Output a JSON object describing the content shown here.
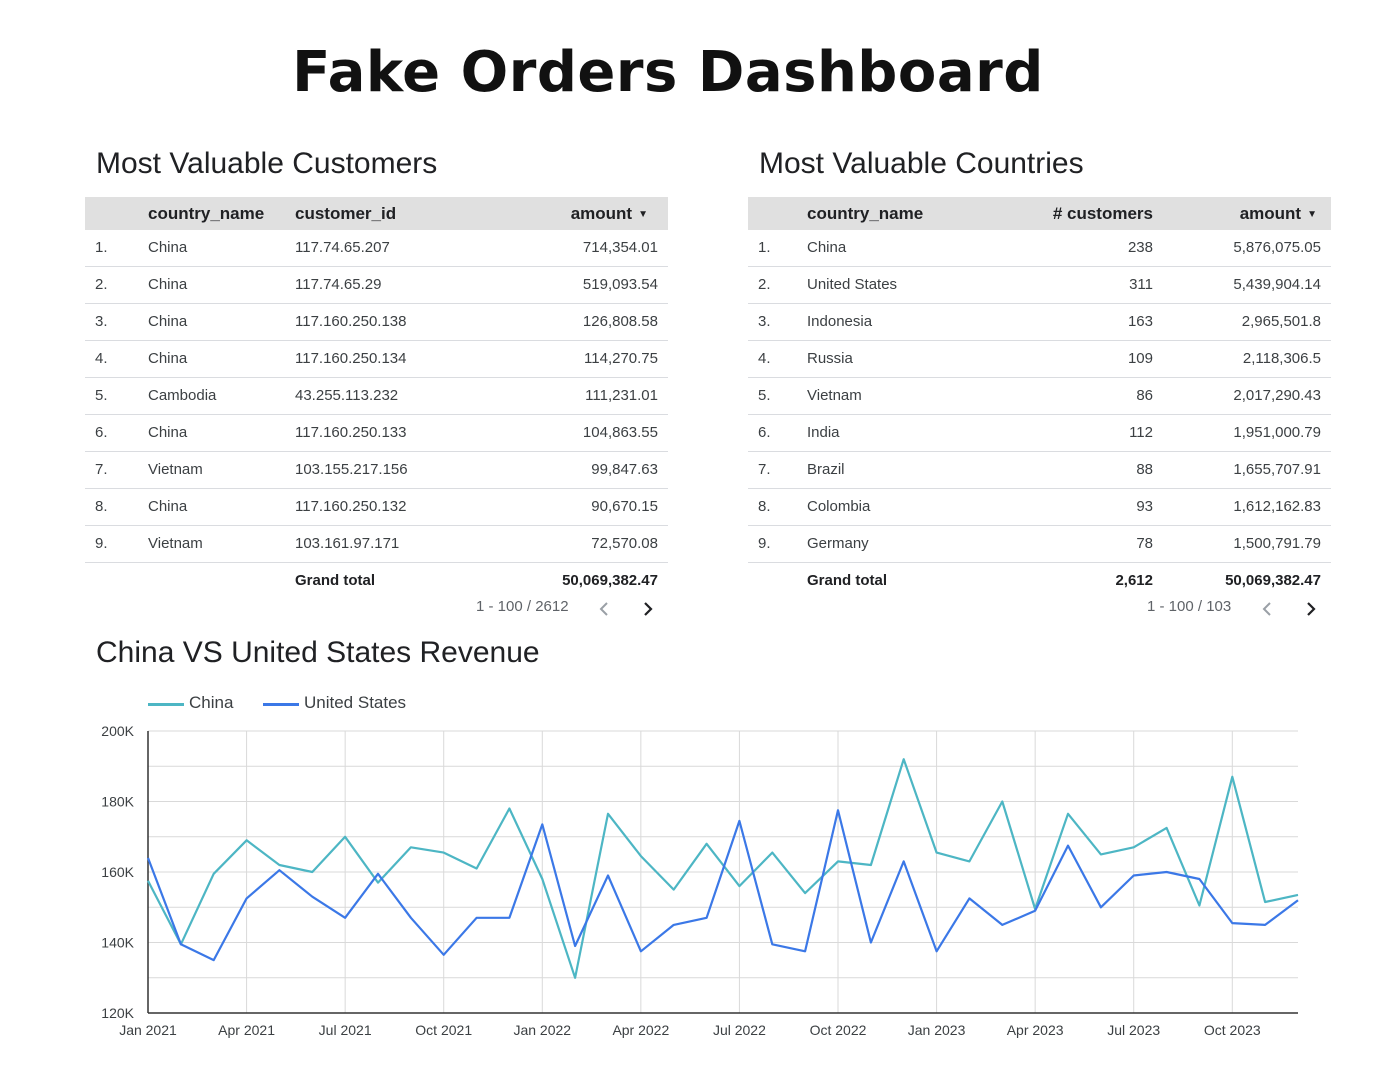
{
  "dashboard": {
    "title": "Fake Orders Dashboard"
  },
  "customers": {
    "title": "Most Valuable Customers",
    "headers": {
      "country": "country_name",
      "customer": "customer_id",
      "amount": "amount"
    },
    "rows": [
      {
        "rank": "1.",
        "country": "China",
        "customer": "117.74.65.207",
        "amount": "714,354.01"
      },
      {
        "rank": "2.",
        "country": "China",
        "customer": "117.74.65.29",
        "amount": "519,093.54"
      },
      {
        "rank": "3.",
        "country": "China",
        "customer": "117.160.250.138",
        "amount": "126,808.58"
      },
      {
        "rank": "4.",
        "country": "China",
        "customer": "117.160.250.134",
        "amount": "114,270.75"
      },
      {
        "rank": "5.",
        "country": "Cambodia",
        "customer": "43.255.113.232",
        "amount": "111,231.01"
      },
      {
        "rank": "6.",
        "country": "China",
        "customer": "117.160.250.133",
        "amount": "104,863.55"
      },
      {
        "rank": "7.",
        "country": "Vietnam",
        "customer": "103.155.217.156",
        "amount": "99,847.63"
      },
      {
        "rank": "8.",
        "country": "China",
        "customer": "117.160.250.132",
        "amount": "90,670.15"
      },
      {
        "rank": "9.",
        "country": "Vietnam",
        "customer": "103.161.97.171",
        "amount": "72,570.08"
      }
    ],
    "total": {
      "label": "Grand total",
      "amount": "50,069,382.47"
    },
    "pager": {
      "text": "1 - 100 / 2612"
    }
  },
  "countries": {
    "title": "Most Valuable Countries",
    "headers": {
      "country": "country_name",
      "customers": "# customers",
      "amount": "amount"
    },
    "rows": [
      {
        "rank": "1.",
        "country": "China",
        "customers": "238",
        "amount": "5,876,075.05"
      },
      {
        "rank": "2.",
        "country": "United States",
        "customers": "311",
        "amount": "5,439,904.14"
      },
      {
        "rank": "3.",
        "country": "Indonesia",
        "customers": "163",
        "amount": "2,965,501.8"
      },
      {
        "rank": "4.",
        "country": "Russia",
        "customers": "109",
        "amount": "2,118,306.5"
      },
      {
        "rank": "5.",
        "country": "Vietnam",
        "customers": "86",
        "amount": "2,017,290.43"
      },
      {
        "rank": "6.",
        "country": "India",
        "customers": "112",
        "amount": "1,951,000.79"
      },
      {
        "rank": "7.",
        "country": "Brazil",
        "customers": "88",
        "amount": "1,655,707.91"
      },
      {
        "rank": "8.",
        "country": "Colombia",
        "customers": "93",
        "amount": "1,612,162.83"
      },
      {
        "rank": "9.",
        "country": "Germany",
        "customers": "78",
        "amount": "1,500,791.79"
      }
    ],
    "total": {
      "label": "Grand total",
      "customers": "2,612",
      "amount": "50,069,382.47"
    },
    "pager": {
      "text": "1 - 100 / 103"
    }
  },
  "icons": {
    "sort": "sort-desc-icon",
    "prev": "chevron-left-icon",
    "next": "chevron-right-icon"
  },
  "colors": {
    "china": "#4db6c4",
    "us": "#3b78e7",
    "header_bg": "#e0e0e0",
    "grid": "#d9d9d9"
  },
  "chart_data": {
    "type": "line",
    "title": "China VS United States Revenue",
    "x": [
      "Jan 2021",
      "Feb 2021",
      "Mar 2021",
      "Apr 2021",
      "May 2021",
      "Jun 2021",
      "Jul 2021",
      "Aug 2021",
      "Sep 2021",
      "Oct 2021",
      "Nov 2021",
      "Dec 2021",
      "Jan 2022",
      "Feb 2022",
      "Mar 2022",
      "Apr 2022",
      "May 2022",
      "Jun 2022",
      "Jul 2022",
      "Aug 2022",
      "Sep 2022",
      "Oct 2022",
      "Nov 2022",
      "Dec 2022",
      "Jan 2023",
      "Feb 2023",
      "Mar 2023",
      "Apr 2023",
      "May 2023",
      "Jun 2023",
      "Jul 2023",
      "Aug 2023",
      "Sep 2023",
      "Oct 2023",
      "Nov 2023",
      "Dec 2023"
    ],
    "x_ticks": [
      "Jan 2021",
      "Apr 2021",
      "Jul 2021",
      "Oct 2021",
      "Jan 2022",
      "Apr 2022",
      "Jul 2022",
      "Oct 2022",
      "Jan 2023",
      "Apr 2023",
      "Jul 2023",
      "Oct 2023"
    ],
    "series": [
      {
        "name": "China",
        "color": "#4db6c4",
        "values": [
          157500,
          139500,
          159500,
          169000,
          162000,
          160000,
          170000,
          157000,
          167000,
          165500,
          161000,
          178000,
          158000,
          130000,
          176500,
          164500,
          155000,
          168000,
          156000,
          165500,
          154000,
          163000,
          162000,
          192000,
          165500,
          163000,
          180000,
          149500,
          176500,
          165000,
          167000,
          172500,
          150500,
          187000,
          151500,
          153500
        ]
      },
      {
        "name": "United States",
        "color": "#3b78e7",
        "values": [
          164000,
          139500,
          135000,
          152500,
          160500,
          153000,
          147000,
          159500,
          147000,
          136500,
          147000,
          147000,
          173500,
          139000,
          159000,
          137500,
          145000,
          147000,
          174500,
          139500,
          137500,
          177500,
          140000,
          163000,
          137500,
          152500,
          145000,
          149000,
          167500,
          150000,
          159000,
          160000,
          158000,
          145500,
          145000,
          152000
        ]
      }
    ],
    "ylim": [
      120000,
      200000
    ],
    "y_ticks": [
      "120K",
      "140K",
      "160K",
      "180K",
      "200K"
    ],
    "y_tick_values": [
      120000,
      140000,
      160000,
      180000,
      200000
    ],
    "grid": true,
    "legend": "top-left"
  }
}
